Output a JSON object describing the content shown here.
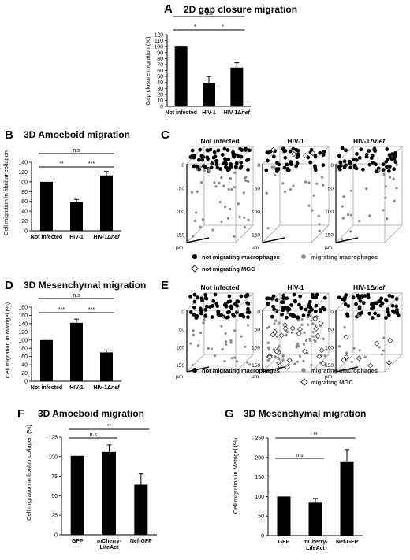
{
  "panels": {
    "A": {
      "letter": "A",
      "chart_data": {
        "type": "bar",
        "title": "2D gap closure migration",
        "ylabel": "Gap closure migration (%)",
        "categories": [
          "Not infected",
          "HIV-1",
          "HIV-1Δnef"
        ],
        "values": [
          100,
          39,
          65
        ],
        "errors": [
          0,
          11,
          8
        ],
        "ylim": [
          0,
          120
        ],
        "yticks": [
          0,
          10,
          20,
          30,
          40,
          50,
          60,
          70,
          80,
          90,
          100,
          110,
          120
        ],
        "significance": [
          {
            "from": 0,
            "to": 2,
            "label": "n.s"
          },
          {
            "from": 0,
            "to": 1,
            "label": "*"
          },
          {
            "from": 1,
            "to": 2,
            "label": "*"
          }
        ]
      }
    },
    "B": {
      "letter": "B",
      "chart_data": {
        "type": "bar",
        "title": "3D Amoeboid migration",
        "ylabel": "Cell migration in fibrillar collagen",
        "categories": [
          "Not infected",
          "HIV-1",
          "HIV-1Δnef"
        ],
        "values": [
          100,
          59,
          113
        ],
        "errors": [
          0,
          5,
          8
        ],
        "ylim": [
          0,
          140
        ],
        "yticks": [
          0,
          20,
          40,
          60,
          80,
          100,
          120,
          140
        ],
        "significance": [
          {
            "from": 0,
            "to": 2,
            "label": "n.s"
          },
          {
            "from": 0,
            "to": 1,
            "label": "**"
          },
          {
            "from": 1,
            "to": 2,
            "label": "***"
          }
        ]
      }
    },
    "C": {
      "letter": "C",
      "boxes": [
        "Not infected",
        "HIV-1",
        "HIV-1Δnef"
      ],
      "zticks": [
        "0",
        "50",
        "100",
        "150"
      ],
      "unit": "µm",
      "legend": {
        "black": "not migrating macrophages",
        "gray": "migrating macrophages",
        "diamond": "not migrating MGC"
      }
    },
    "D": {
      "letter": "D",
      "chart_data": {
        "type": "bar",
        "title": "3D Mesenchymal migration",
        "ylabel": "Cell migration in Matrigel (%)",
        "categories": [
          "Not infected",
          "HIV-1",
          "HIV-1Δnef"
        ],
        "values": [
          100,
          142,
          70
        ],
        "errors": [
          0,
          9,
          6
        ],
        "ylim": [
          0,
          180
        ],
        "yticks": [
          0,
          20,
          40,
          60,
          80,
          100,
          120,
          140,
          160,
          180
        ],
        "significance": [
          {
            "from": 0,
            "to": 2,
            "label": "n.s"
          },
          {
            "from": 0,
            "to": 1,
            "label": "***"
          },
          {
            "from": 1,
            "to": 2,
            "label": "***"
          }
        ]
      }
    },
    "E": {
      "letter": "E",
      "boxes": [
        "Not infected",
        "HIV-1",
        "HIV-1Δnef"
      ],
      "zticks": [
        "0",
        "50",
        "100",
        "150"
      ],
      "unit": "µm",
      "legend": {
        "black": "not migrating macrophages",
        "gray": "migrating macrophages",
        "diamond": "migrating MGC"
      }
    },
    "F": {
      "letter": "F",
      "chart_data": {
        "type": "bar",
        "title": "3D Amoeboid migration",
        "ylabel": "Cell migration in fibrillar collagen (%)",
        "categories": [
          "GFP",
          "mCherry-\nLifeAct",
          "Nef-GFP"
        ],
        "values": [
          101,
          106,
          64
        ],
        "errors": [
          0,
          9,
          14
        ],
        "ylim": [
          0,
          125
        ],
        "yticks": [
          0,
          25,
          50,
          75,
          100,
          125
        ],
        "significance": [
          {
            "from": 0,
            "to": 1,
            "label": "n.s"
          },
          {
            "from": 0,
            "to": 2,
            "label": "**"
          }
        ]
      }
    },
    "G": {
      "letter": "G",
      "chart_data": {
        "type": "bar",
        "title": "3D Mesenchymal migration",
        "ylabel": "Cell migration in Matrigel (%)",
        "categories": [
          "GFP",
          "mCherry-\nLifeAct",
          "Nef-GFP"
        ],
        "values": [
          100,
          86,
          190
        ],
        "errors": [
          0,
          9,
          30
        ],
        "ylim": [
          0,
          250
        ],
        "yticks": [
          0,
          50,
          100,
          150,
          200,
          250
        ],
        "significance": [
          {
            "from": 0,
            "to": 1,
            "label": "n.s"
          },
          {
            "from": 0,
            "to": 2,
            "label": "**"
          }
        ]
      }
    }
  }
}
